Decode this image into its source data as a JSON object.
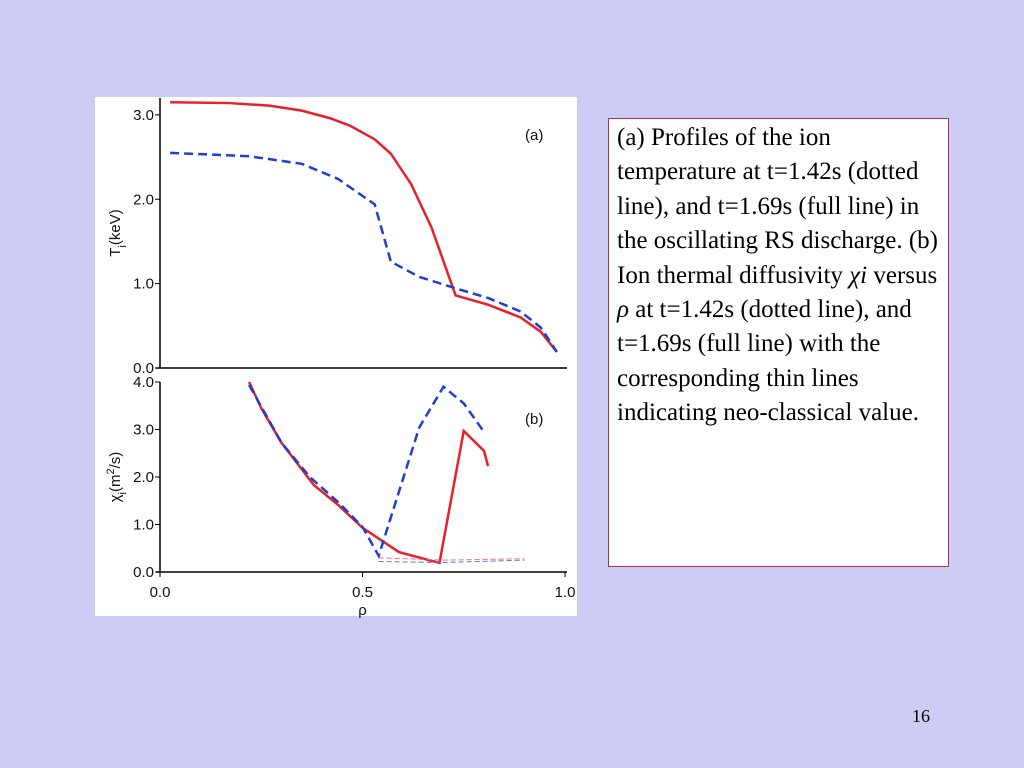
{
  "chart_data": [
    {
      "type": "line",
      "panel_label": "(a)",
      "ylabel": [
        {
          "text": "T"
        },
        {
          "text": "i",
          "shift": "sub"
        },
        {
          "text": "(keV)"
        }
      ],
      "xlim": [
        0,
        1
      ],
      "ylim": [
        0,
        3.2
      ],
      "yticks": [
        {
          "value": 0,
          "label": "0.0"
        },
        {
          "value": 1,
          "label": "1.0"
        },
        {
          "value": 2,
          "label": "2.0"
        },
        {
          "value": 3,
          "label": "3.0"
        }
      ],
      "series": [
        {
          "color": "#e8202a",
          "dash": false,
          "width": 2.5,
          "x": [
            0.025,
            0.17,
            0.27,
            0.35,
            0.42,
            0.47,
            0.53,
            0.57,
            0.62,
            0.67,
            0.73,
            0.81,
            0.89,
            0.94,
            0.98
          ],
          "values": [
            3.15,
            3.14,
            3.11,
            3.05,
            2.96,
            2.87,
            2.71,
            2.54,
            2.18,
            1.67,
            0.86,
            0.75,
            0.6,
            0.43,
            0.19
          ]
        },
        {
          "color": "#1f3fd0",
          "dash": true,
          "width": 2.5,
          "x": [
            0.025,
            0.22,
            0.35,
            0.44,
            0.53,
            0.57,
            0.64,
            0.74,
            0.81,
            0.89,
            0.94,
            0.98
          ],
          "values": [
            2.55,
            2.51,
            2.42,
            2.24,
            1.94,
            1.26,
            1.08,
            0.93,
            0.83,
            0.67,
            0.48,
            0.19
          ]
        }
      ]
    },
    {
      "type": "line",
      "panel_label": "(b)",
      "xlabel": "ρ",
      "ylabel": [
        {
          "text": "χ"
        },
        {
          "text": "i",
          "shift": "sub"
        },
        {
          "text": "(m"
        },
        {
          "text": "2",
          "shift": "super"
        },
        {
          "text": "/s)"
        }
      ],
      "xlim": [
        0,
        1
      ],
      "ylim": [
        0,
        4
      ],
      "xticks": [
        {
          "value": 0,
          "label": "0.0"
        },
        {
          "value": 0.5,
          "label": "0.5"
        },
        {
          "value": 1,
          "label": "1.0"
        }
      ],
      "yticks": [
        {
          "value": 0,
          "label": "0.0"
        },
        {
          "value": 1,
          "label": "1.0"
        },
        {
          "value": 2,
          "label": "2.0"
        },
        {
          "value": 3,
          "label": "3.0"
        },
        {
          "value": 4,
          "label": "4.0"
        }
      ],
      "series": [
        {
          "color": "#e8202a",
          "dash": false,
          "width": 2.5,
          "x": [
            0.22,
            0.25,
            0.3,
            0.38,
            0.44,
            0.5,
            0.59,
            0.69,
            0.75,
            0.8,
            0.81
          ],
          "values": [
            4.0,
            3.45,
            2.72,
            1.83,
            1.41,
            0.93,
            0.42,
            0.19,
            2.97,
            2.55,
            2.23
          ]
        },
        {
          "color": "#1f3fd0",
          "dash": true,
          "width": 2.5,
          "x": [
            0.22,
            0.3,
            0.37,
            0.44,
            0.5,
            0.54,
            0.64,
            0.7,
            0.75,
            0.8
          ],
          "values": [
            3.94,
            2.72,
            2.0,
            1.47,
            0.95,
            0.34,
            3.04,
            3.9,
            3.55,
            2.95
          ]
        },
        {
          "color": "#e07090",
          "dash": true,
          "width": 1,
          "x": [
            0.54,
            0.7,
            0.9
          ],
          "values": [
            0.3,
            0.25,
            0.28
          ]
        },
        {
          "color": "#6070e0",
          "dash": true,
          "width": 1,
          "x": [
            0.54,
            0.7,
            0.9
          ],
          "values": [
            0.22,
            0.2,
            0.25
          ]
        }
      ]
    }
  ],
  "caption": [
    {
      "text": "(a) Profiles of the ion temperature at t=1.42s (dotted line), and t=1.69s (full line) in the oscillating RS discharge. (b) Ion thermal diffusivity "
    },
    {
      "text": "χi",
      "italic": true
    },
    {
      "text": " versus "
    },
    {
      "text": "ρ",
      "italic": true
    },
    {
      "text": " at t=1.42s (dotted line), and t=1.69s (full line) with the corresponding thin lines indicating neo-classical value."
    }
  ],
  "page_number": "16"
}
